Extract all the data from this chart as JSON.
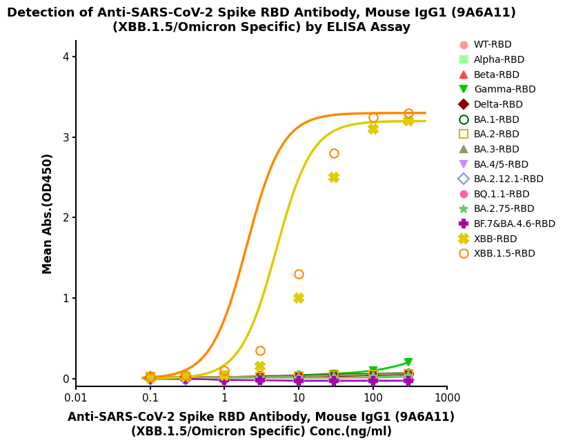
{
  "title_line1": "Detection of Anti-SARS-CoV-2 Spike RBD Antibody, Mouse IgG1 (9A6A11)",
  "title_line2": "(XBB.1.5/Omicron Specific) by ELISA Assay",
  "xlabel_line1": "Anti-SARS-CoV-2 Spike RBD Antibody, Mouse IgG1 (9A6A11)",
  "xlabel_line2": "(XBB.1.5/Omicron Specific) Conc.(ng/ml)",
  "ylabel": "Mean Abs.(OD450)",
  "xmin": 0.01,
  "xmax": 1000,
  "ymin": -0.1,
  "ymax": 4.2,
  "yticks": [
    0,
    1,
    2,
    3,
    4
  ],
  "conc_points": [
    0.1,
    0.3,
    1,
    3,
    10,
    30,
    100,
    300
  ],
  "series": [
    {
      "label": "WT-RBD",
      "color": "#FF9999",
      "marker": "o",
      "markerfacecolor": "#FF9999",
      "markeredgecolor": "#FF9999",
      "markersize": 7,
      "linewidth": 1.5,
      "values": [
        0.02,
        0.02,
        0.02,
        0.02,
        0.03,
        0.04,
        0.05,
        0.06
      ],
      "show_line": true,
      "fillstyle": "full"
    },
    {
      "label": "Alpha-RBD",
      "color": "#99FF99",
      "marker": "s",
      "markerfacecolor": "#99FF99",
      "markeredgecolor": "#99FF99",
      "markersize": 7,
      "linewidth": 1.5,
      "values": [
        0.02,
        0.02,
        0.02,
        0.02,
        0.03,
        0.03,
        0.04,
        0.05
      ],
      "show_line": true,
      "fillstyle": "full"
    },
    {
      "label": "Beta-RBD",
      "color": "#FF4444",
      "marker": "^",
      "markerfacecolor": "#FF4444",
      "markeredgecolor": "#FF4444",
      "markersize": 7,
      "linewidth": 1.5,
      "values": [
        0.02,
        0.02,
        0.02,
        0.02,
        0.03,
        0.04,
        0.05,
        0.06
      ],
      "show_line": true,
      "fillstyle": "full"
    },
    {
      "label": "Gamma-RBD",
      "color": "#00CC00",
      "marker": "v",
      "markerfacecolor": "#00CC00",
      "markeredgecolor": "#00CC00",
      "markersize": 7,
      "linewidth": 2.0,
      "values": [
        0.02,
        0.02,
        0.02,
        0.02,
        0.04,
        0.06,
        0.1,
        0.2
      ],
      "show_line": true,
      "fillstyle": "full"
    },
    {
      "label": "Delta-RBD",
      "color": "#8B0000",
      "marker": "D",
      "markerfacecolor": "#8B0000",
      "markeredgecolor": "#8B0000",
      "markersize": 7,
      "linewidth": 1.5,
      "values": [
        0.02,
        0.02,
        0.02,
        0.02,
        0.02,
        0.03,
        0.04,
        0.05
      ],
      "show_line": true,
      "fillstyle": "full"
    },
    {
      "label": "BA.1-RBD",
      "color": "#006600",
      "marker": "o",
      "markerfacecolor": "none",
      "markeredgecolor": "#006600",
      "markersize": 9,
      "linewidth": 1.5,
      "values": [
        0.02,
        0.02,
        0.02,
        0.03,
        0.04,
        0.05,
        0.06,
        0.07
      ],
      "show_line": true,
      "fillstyle": "none"
    },
    {
      "label": "BA.2-RBD",
      "color": "#FFA500",
      "marker": "s",
      "markerfacecolor": "none",
      "markeredgecolor": "#FFA500",
      "markersize": 9,
      "linewidth": 1.5,
      "values": [
        0.02,
        0.02,
        0.02,
        0.02,
        0.03,
        0.04,
        0.05,
        0.06
      ],
      "show_line": true,
      "fillstyle": "none"
    },
    {
      "label": "BA.3-RBD",
      "color": "#999966",
      "marker": "^",
      "markerfacecolor": "#999966",
      "markeredgecolor": "#999966",
      "markersize": 7,
      "linewidth": 1.5,
      "values": [
        0.02,
        0.02,
        0.02,
        0.02,
        0.03,
        0.04,
        0.05,
        0.06
      ],
      "show_line": true,
      "fillstyle": "full"
    },
    {
      "label": "BA.4/5-RBD",
      "color": "#CC88FF",
      "marker": "v",
      "markerfacecolor": "#CC88FF",
      "markeredgecolor": "#CC88FF",
      "markersize": 7,
      "linewidth": 1.5,
      "values": [
        0.0,
        0.0,
        -0.02,
        -0.02,
        -0.02,
        -0.02,
        -0.02,
        -0.02
      ],
      "show_line": true,
      "fillstyle": "full"
    },
    {
      "label": "BA.2.12.1-RBD",
      "color": "#8888FF",
      "marker": "D",
      "markerfacecolor": "none",
      "markeredgecolor": "#8888FF",
      "markersize": 8,
      "linewidth": 1.5,
      "values": [
        -0.01,
        -0.01,
        -0.01,
        -0.02,
        -0.02,
        -0.02,
        -0.02,
        -0.02
      ],
      "show_line": true,
      "fillstyle": "none"
    },
    {
      "label": "BQ.1.1-RBD",
      "color": "#FF66AA",
      "marker": "o",
      "markerfacecolor": "#FF66AA",
      "markeredgecolor": "#FF66AA",
      "markersize": 7,
      "linewidth": 1.5,
      "values": [
        0.01,
        0.01,
        0.01,
        0.01,
        0.01,
        0.01,
        0.01,
        0.02
      ],
      "show_line": true,
      "fillstyle": "full"
    },
    {
      "label": "BA.2.75-RBD",
      "color": "#66CC66",
      "marker": "*",
      "markerfacecolor": "#66CC66",
      "markeredgecolor": "#66CC66",
      "markersize": 9,
      "linewidth": 1.5,
      "values": [
        0.01,
        0.01,
        0.01,
        0.01,
        0.01,
        0.01,
        0.02,
        0.03
      ],
      "show_line": true,
      "fillstyle": "full"
    },
    {
      "label": "BF.7&BA.4.6-RBD",
      "color": "#AA00AA",
      "marker": "P",
      "markerfacecolor": "#AA00AA",
      "markeredgecolor": "#AA00AA",
      "markersize": 8,
      "linewidth": 1.5,
      "values": [
        0.0,
        0.0,
        -0.02,
        -0.02,
        -0.03,
        -0.03,
        -0.03,
        -0.03
      ],
      "show_line": true,
      "fillstyle": "full"
    },
    {
      "label": "XBB-RBD",
      "color": "#DDCC00",
      "marker": "X",
      "markerfacecolor": "#DDCC00",
      "markeredgecolor": "#DDCC00",
      "markersize": 10,
      "linewidth": 2.5,
      "ec50": 5.0,
      "top": 3.2,
      "hillslope": 1.8,
      "values": [
        0.01,
        0.02,
        0.04,
        0.15,
        1.0,
        2.5,
        3.1,
        3.2
      ],
      "show_line": true,
      "fillstyle": "full"
    },
    {
      "label": "XBB.1.5-RBD",
      "color": "#FF8800",
      "marker": "o",
      "markerfacecolor": "none",
      "markeredgecolor": "#FF8800",
      "markersize": 9,
      "linewidth": 2.5,
      "ec50": 2.0,
      "top": 3.3,
      "hillslope": 1.8,
      "values": [
        0.02,
        0.04,
        0.1,
        0.35,
        1.3,
        2.8,
        3.25,
        3.3
      ],
      "show_line": true,
      "fillstyle": "none"
    }
  ]
}
